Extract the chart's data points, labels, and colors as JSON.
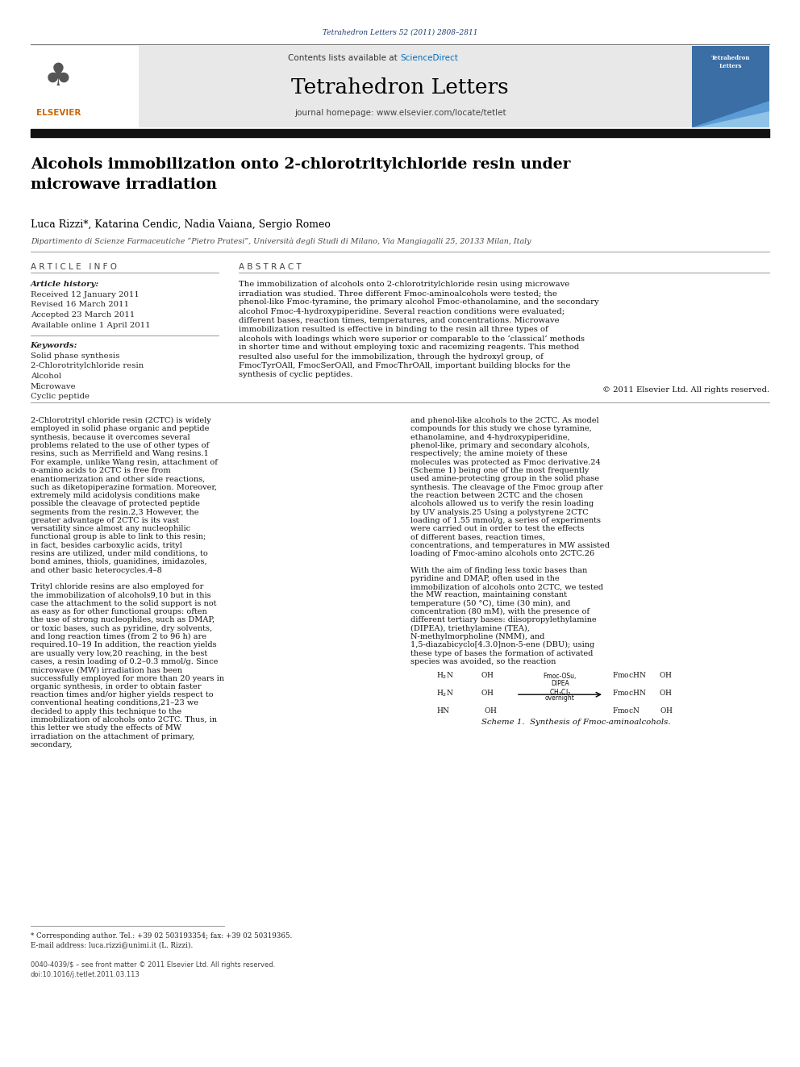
{
  "page_width": 9.92,
  "page_height": 13.23,
  "bg_color": "#ffffff",
  "top_journal_ref": "Tetrahedron Letters 52 (2011) 2808–2811",
  "top_journal_ref_color": "#1a3a6e",
  "header_bg": "#e8e8e8",
  "header_contents_plain": "Contents lists available at ",
  "header_sciencedirect": "ScienceDirect",
  "header_sciencedirect_color": "#0070c0",
  "header_journal_name": "Tetrahedron Letters",
  "header_homepage": "journal homepage: www.elsevier.com/locate/tetlet",
  "black_bar_color": "#111111",
  "title": "Alcohols immobilization onto 2-chlorotritylchloride resin under\nmicrowave irradiation",
  "authors": "Luca Rizzi*, Katarina Cendic, Nadia Vaiana, Sergio Romeo",
  "affiliation": "Dipartimento di Scienze Farmaceutiche “Pietro Pratesi”, Università degli Studi di Milano, Via Mangiagalli 25, 20133 Milan, Italy",
  "article_info_title": "A R T I C L E   I N F O",
  "abstract_title": "A B S T R A C T",
  "article_history_label": "Article history:",
  "received": "Received 12 January 2011",
  "revised": "Revised 16 March 2011",
  "accepted": "Accepted 23 March 2011",
  "available": "Available online 1 April 2011",
  "keywords_label": "Keywords:",
  "keywords": [
    "Solid phase synthesis",
    "2-Chlorotritylchloride resin",
    "Alcohol",
    "Microwave",
    "Cyclic peptide"
  ],
  "abstract_text": "The immobilization of alcohols onto 2-chlorotritylchloride resin using microwave irradiation was studied. Three different Fmoc-aminoalcohols were tested; the phenol-like Fmoc-tyramine, the primary alcohol Fmoc-ethanolamine, and the secondary alcohol Fmoc-4-hydroxypiperidine. Several reaction conditions were evaluated; different bases, reaction times, temperatures, and concentrations. Microwave immobilization resulted is effective in binding to the resin all three types of alcohols with loadings which were superior or comparable to the ‘classical’ methods in shorter time and without employing toxic and racemizing reagents. This method resulted also useful for the immobilization, through the hydroxyl group, of FmocTyrOAll, FmocSerOAll, and FmocThrOAll, important building blocks for the synthesis of cyclic peptides.",
  "copyright": "© 2011 Elsevier Ltd. All rights reserved.",
  "body_col1": "2-Chlorotrityl chloride resin (2CTC) is widely employed in solid phase organic and peptide synthesis, because it overcomes several problems related to the use of other types of resins, such as Merrifield and Wang resins.1 For example, unlike Wang resin, attachment of α-amino acids to 2CTC is free from enantiomerization and other side reactions, such as diketopiperazine formation. Moreover, extremely mild acidolysis conditions make possible the cleavage of protected peptide segments from the resin.2,3 However, the greater advantage of 2CTC is its vast versatility since almost any nucleophilic functional group is able to link to this resin; in fact, besides carboxylic acids, trityl resins are utilized, under mild conditions, to bond amines, thiols, guanidines, imidazoles, and other basic heterocycles.4–8\n\n    Trityl chloride resins are also employed for the immobilization of alcohols9,10 but in this case the attachment to the solid support is not as easy as for other functional groups: often the use of strong nucleophiles, such as DMAP, or toxic bases, such as pyridine, dry solvents, and long reaction times (from 2 to 96 h) are required.10–19 In addition, the reaction yields are usually very low,20 reaching, in the best cases, a resin loading of 0.2–0.3 mmol/g. Since microwave (MW) irradiation has been successfully employed for more than 20 years in organic synthesis, in order to obtain faster reaction times and/or higher yields respect to conventional heating conditions,21–23 we decided to apply this technique to the immobilization of alcohols onto 2CTC. Thus, in this letter we study the effects of MW irradiation on the attachment of primary, secondary,",
  "body_col2": "and phenol-like alcohols to the 2CTC. As model compounds for this study we chose tyramine, ethanolamine, and 4-hydroxypiperidine, phenol-like, primary and secondary alcohols, respectively; the amine moiety of these molecules was protected as Fmoc derivative.24 (Scheme 1) being one of the most frequently used amine-protecting group in the solid phase synthesis. The cleavage of the Fmoc group after the reaction between 2CTC and the chosen alcohols allowed us to verify the resin loading by UV analysis.25 Using a polystyrene 2CTC loading of 1.55 mmol/g, a series of experiments were carried out in order to test the effects of different bases, reaction times, concentrations, and temperatures in MW assisted loading of Fmoc-amino alcohols onto 2CTC.26\n\n    With the aim of finding less toxic bases than pyridine and DMAP, often used in the immobilization of alcohols onto 2CTC, we tested the MW reaction, maintaining constant temperature (50 °C), time (30 min), and concentration (80 mM), with the presence of different tertiary bases: diisopropylethylamine (DIPEA), triethylamine (TEA), N-methylmorpholine (NMM), and 1,5-diazabicyclo[4.3.0]non-5-ene (DBU); using these type of bases the formation of activated species was avoided, so the reaction",
  "footnote_asterisk": "* Corresponding author. Tel.: +39 02 503193354; fax: +39 02 50319365.",
  "footnote_email": "E-mail address: luca.rizzi@unimi.it (L. Rizzi).",
  "footer_left": "0040-4039/$ – see front matter © 2011 Elsevier Ltd. All rights reserved.",
  "footer_doi": "doi:10.1016/j.tetlet.2011.03.113",
  "scheme_caption": "Scheme 1.  Synthesis of Fmoc-aminoalcohols.",
  "title_color": "#000000",
  "body_text_color": "#000000",
  "orange_color": "#cc6600"
}
